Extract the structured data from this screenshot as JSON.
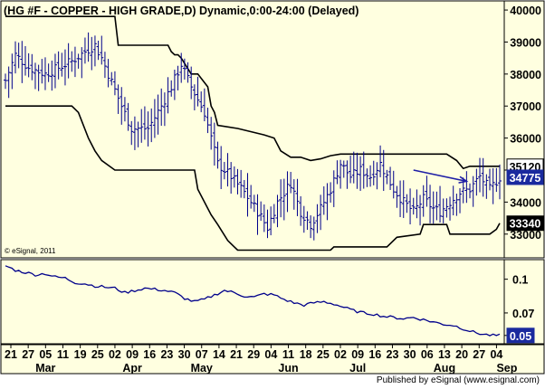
{
  "header": {
    "title": "(HG #F - COPPER - HIGH GRADE,D) Dynamic,0:00-24:00 (Delayed)"
  },
  "watermark": "© eSignal, 2011",
  "footer": {
    "text": "Published by eSignal (www.esignal.com)"
  },
  "colors": {
    "background": "#ffffe0",
    "axis_background": "#ffffe0",
    "bars": "#00008b",
    "channel": "#000000",
    "arrow": "#1f1fa6",
    "label_fill": "#000000",
    "price_label_fill": "#ffffff"
  },
  "chart_data": [
    {
      "type": "ohlc",
      "title": "(HG #F - COPPER - HIGH GRADE,D) Dynamic,0:00-24:00 (Delayed)",
      "ylim": [
        32400,
        40200
      ],
      "yticks": [
        33000,
        34000,
        35000,
        36000,
        37000,
        38000,
        39000,
        40000
      ],
      "ytick_labels": [
        "33000",
        "34000",
        "35000",
        "36000",
        "37000",
        "38000",
        "39000",
        "40000"
      ],
      "x_day_labels": [
        "21",
        "27",
        "05",
        "11",
        "19",
        "25",
        "02",
        "09",
        "16",
        "23",
        "30",
        "07",
        "14",
        "21",
        "29",
        "04",
        "11",
        "18",
        "25",
        "02",
        "09",
        "16",
        "23",
        "30",
        "06",
        "13",
        "20",
        "27",
        "04"
      ],
      "x_month_labels": [
        {
          "label": "Mar",
          "at_day_index": 2
        },
        {
          "label": "Apr",
          "at_day_index": 7
        },
        {
          "label": "May",
          "at_day_index": 11
        },
        {
          "label": "Jun",
          "at_day_index": 16
        },
        {
          "label": "Jul",
          "at_day_index": 20
        },
        {
          "label": "Aug",
          "at_day_index": 25
        },
        {
          "label": "Sep",
          "at_day_index": 28.6
        }
      ],
      "price_labels": [
        {
          "value": 35120,
          "text": "35120",
          "style": "highlight"
        },
        {
          "value": 34775,
          "text": "34775",
          "style": "last"
        },
        {
          "value": 33340,
          "text": "33340",
          "style": "dark"
        }
      ],
      "close_anchors": [
        [
          0,
          37800
        ],
        [
          3,
          38600
        ],
        [
          7,
          38200
        ],
        [
          12,
          38000
        ],
        [
          16,
          38200
        ],
        [
          20,
          38400
        ],
        [
          24,
          38700
        ],
        [
          27,
          38900
        ],
        [
          29,
          38500
        ],
        [
          31,
          38000
        ],
        [
          35,
          37000
        ],
        [
          38,
          36300
        ],
        [
          43,
          36300
        ],
        [
          47,
          37000
        ],
        [
          50,
          37600
        ],
        [
          53,
          38300
        ],
        [
          56,
          37600
        ],
        [
          60,
          36800
        ],
        [
          64,
          35200
        ],
        [
          68,
          34800
        ],
        [
          72,
          34300
        ],
        [
          76,
          33700
        ],
        [
          79,
          33200
        ],
        [
          82,
          34000
        ],
        [
          86,
          34600
        ],
        [
          89,
          33700
        ],
        [
          92,
          33300
        ],
        [
          95,
          33800
        ],
        [
          98,
          34400
        ],
        [
          101,
          35200
        ],
        [
          104,
          34800
        ],
        [
          107,
          35000
        ],
        [
          110,
          34800
        ],
        [
          113,
          35200
        ],
        [
          117,
          34400
        ],
        [
          120,
          34000
        ],
        [
          123,
          33700
        ],
        [
          126,
          34100
        ],
        [
          129,
          33800
        ],
        [
          131,
          33700
        ],
        [
          134,
          34000
        ],
        [
          137,
          34300
        ],
        [
          140,
          34400
        ],
        [
          143,
          34800
        ],
        [
          146,
          34400
        ],
        [
          149,
          34775
        ]
      ],
      "upper_channel": [
        [
          0,
          39800
        ],
        [
          33,
          39800
        ],
        [
          34,
          38900
        ],
        [
          49,
          38900
        ],
        [
          50,
          38700
        ],
        [
          51,
          38600
        ],
        [
          52,
          38600
        ],
        [
          53,
          38500
        ],
        [
          56,
          38000
        ],
        [
          58,
          38000
        ],
        [
          61,
          37600
        ],
        [
          62,
          37000
        ],
        [
          63,
          36800
        ],
        [
          64,
          36400
        ],
        [
          70,
          36300
        ],
        [
          78,
          36100
        ],
        [
          81,
          36000
        ],
        [
          83,
          35600
        ],
        [
          86,
          35400
        ],
        [
          89,
          35400
        ],
        [
          92,
          35300
        ],
        [
          95,
          35350
        ],
        [
          98,
          35450
        ],
        [
          101,
          35500
        ],
        [
          133,
          35500
        ],
        [
          136,
          35300
        ],
        [
          138,
          35050
        ],
        [
          140,
          35120
        ],
        [
          149,
          35120
        ]
      ],
      "lower_channel": [
        [
          0,
          37000
        ],
        [
          20,
          37000
        ],
        [
          22,
          36800
        ],
        [
          25,
          36000
        ],
        [
          27,
          35600
        ],
        [
          29,
          35300
        ],
        [
          33,
          35000
        ],
        [
          36,
          35000
        ],
        [
          43,
          35000
        ],
        [
          45,
          35000
        ],
        [
          57,
          35000
        ],
        [
          58,
          34400
        ],
        [
          62,
          33600
        ],
        [
          64,
          33300
        ],
        [
          67,
          32800
        ],
        [
          69,
          32600
        ],
        [
          70,
          32500
        ],
        [
          98,
          32500
        ],
        [
          99,
          32600
        ],
        [
          115,
          32600
        ],
        [
          118,
          32900
        ],
        [
          125,
          33000
        ],
        [
          126,
          33300
        ],
        [
          133,
          33300
        ],
        [
          134,
          33000
        ],
        [
          146,
          33000
        ],
        [
          148,
          33150
        ],
        [
          149,
          33340
        ]
      ],
      "arrow": {
        "from": [
          123,
          35000
        ],
        "to": [
          139,
          34650
        ]
      }
    },
    {
      "type": "line",
      "ylim": [
        0.045,
        0.115
      ],
      "yticks": [
        0.1,
        0.07,
        0.05
      ],
      "ytick_labels": [
        "0.1",
        "0.07",
        "0.05"
      ],
      "last_value_label": "0.05",
      "anchors": [
        [
          0,
          0.112
        ],
        [
          3,
          0.108
        ],
        [
          6,
          0.106
        ],
        [
          9,
          0.104
        ],
        [
          12,
          0.105
        ],
        [
          15,
          0.102
        ],
        [
          18,
          0.101
        ],
        [
          21,
          0.097
        ],
        [
          24,
          0.096
        ],
        [
          27,
          0.094
        ],
        [
          30,
          0.093
        ],
        [
          33,
          0.092
        ],
        [
          36,
          0.088
        ],
        [
          39,
          0.09
        ],
        [
          42,
          0.092
        ],
        [
          45,
          0.091
        ],
        [
          48,
          0.09
        ],
        [
          51,
          0.088
        ],
        [
          54,
          0.083
        ],
        [
          57,
          0.08
        ],
        [
          60,
          0.082
        ],
        [
          63,
          0.086
        ],
        [
          66,
          0.09
        ],
        [
          69,
          0.088
        ],
        [
          72,
          0.085
        ],
        [
          75,
          0.084
        ],
        [
          78,
          0.087
        ],
        [
          81,
          0.086
        ],
        [
          84,
          0.082
        ],
        [
          87,
          0.079
        ],
        [
          90,
          0.077
        ],
        [
          93,
          0.079
        ],
        [
          96,
          0.08
        ],
        [
          99,
          0.078
        ],
        [
          102,
          0.075
        ],
        [
          105,
          0.072
        ],
        [
          108,
          0.07
        ],
        [
          111,
          0.069
        ],
        [
          114,
          0.067
        ],
        [
          117,
          0.066
        ],
        [
          120,
          0.065
        ],
        [
          123,
          0.066
        ],
        [
          126,
          0.064
        ],
        [
          129,
          0.062
        ],
        [
          132,
          0.06
        ],
        [
          135,
          0.059
        ],
        [
          138,
          0.056
        ],
        [
          141,
          0.053
        ],
        [
          144,
          0.051
        ],
        [
          147,
          0.05
        ],
        [
          149,
          0.05
        ]
      ]
    }
  ]
}
